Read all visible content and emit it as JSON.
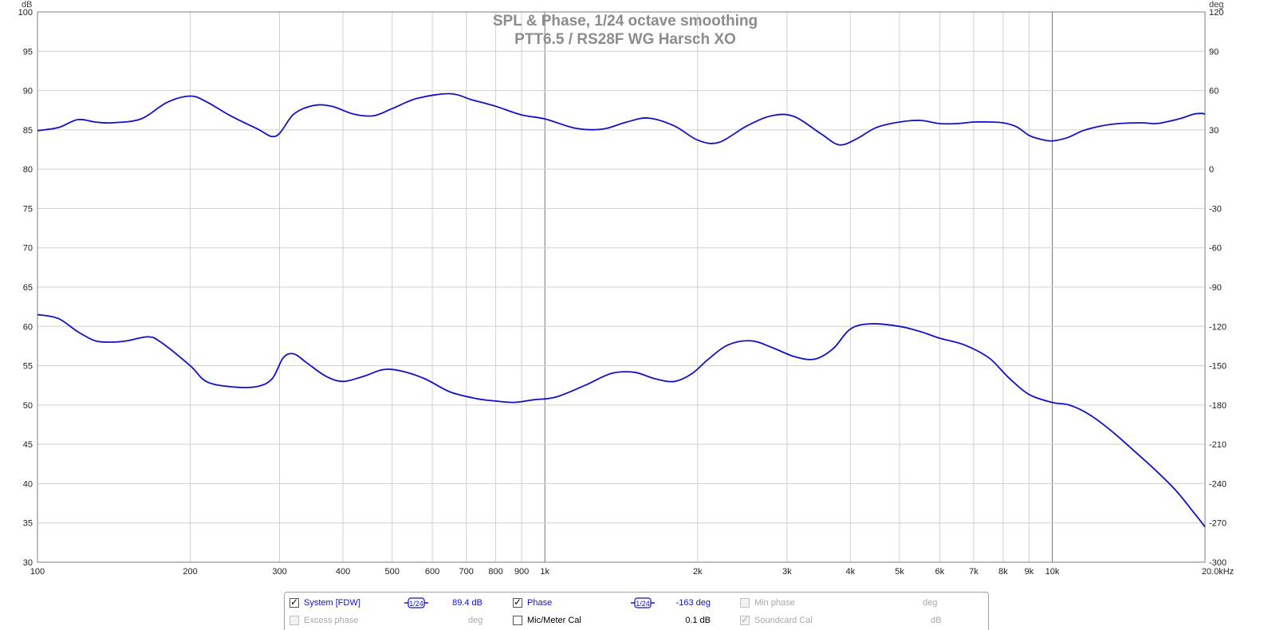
{
  "chart_data": {
    "type": "line",
    "title": "SPL & Phase, 1/24 octave smoothing",
    "subtitle": "PTT6.5 / RS28F WG Harsch XO",
    "y_left_label": "dB",
    "y_right_label": "deg",
    "x_unit": "Hz",
    "x_scale": "log",
    "xlim": [
      100,
      20000
    ],
    "ylim_left": [
      30,
      100
    ],
    "ylim_right": [
      -300,
      120
    ],
    "grid": true,
    "x_ticks": [
      {
        "v": 100,
        "label": "100"
      },
      {
        "v": 200,
        "label": "200"
      },
      {
        "v": 300,
        "label": "300"
      },
      {
        "v": 400,
        "label": "400"
      },
      {
        "v": 500,
        "label": "500"
      },
      {
        "v": 600,
        "label": "600"
      },
      {
        "v": 700,
        "label": "700"
      },
      {
        "v": 800,
        "label": "800"
      },
      {
        "v": 900,
        "label": "900"
      },
      {
        "v": 1000,
        "label": "1k"
      },
      {
        "v": 2000,
        "label": "2k"
      },
      {
        "v": 3000,
        "label": "3k"
      },
      {
        "v": 4000,
        "label": "4k"
      },
      {
        "v": 5000,
        "label": "5k"
      },
      {
        "v": 6000,
        "label": "6k"
      },
      {
        "v": 7000,
        "label": "7k"
      },
      {
        "v": 8000,
        "label": "8k"
      },
      {
        "v": 9000,
        "label": "9k"
      },
      {
        "v": 10000,
        "label": "10k"
      },
      {
        "v": 20000,
        "label": "20.0kHz"
      }
    ],
    "y_left_ticks": [
      30,
      35,
      40,
      45,
      50,
      55,
      60,
      65,
      70,
      75,
      80,
      85,
      90,
      95,
      100
    ],
    "y_right_ticks": [
      -300,
      -270,
      -240,
      -210,
      -180,
      -150,
      -120,
      -90,
      -60,
      -30,
      0,
      30,
      60,
      90,
      120
    ],
    "series": [
      {
        "name": "System [FDW]",
        "axis": "left",
        "color": "#1010c8",
        "points": [
          [
            100,
            84.9
          ],
          [
            110,
            85.3
          ],
          [
            120,
            86.3
          ],
          [
            130,
            86.0
          ],
          [
            140,
            85.9
          ],
          [
            160,
            86.4
          ],
          [
            180,
            88.5
          ],
          [
            200,
            89.3
          ],
          [
            215,
            88.6
          ],
          [
            240,
            86.8
          ],
          [
            270,
            85.2
          ],
          [
            295,
            84.2
          ],
          [
            320,
            87.0
          ],
          [
            350,
            88.1
          ],
          [
            380,
            88.0
          ],
          [
            420,
            87.0
          ],
          [
            460,
            86.8
          ],
          [
            500,
            87.7
          ],
          [
            560,
            89.0
          ],
          [
            650,
            89.6
          ],
          [
            720,
            88.8
          ],
          [
            800,
            88.0
          ],
          [
            900,
            86.9
          ],
          [
            1000,
            86.4
          ],
          [
            1150,
            85.2
          ],
          [
            1300,
            85.1
          ],
          [
            1450,
            86.0
          ],
          [
            1600,
            86.5
          ],
          [
            1800,
            85.5
          ],
          [
            2000,
            83.7
          ],
          [
            2200,
            83.4
          ],
          [
            2500,
            85.5
          ],
          [
            2800,
            86.8
          ],
          [
            3100,
            86.7
          ],
          [
            3500,
            84.5
          ],
          [
            3800,
            83.1
          ],
          [
            4100,
            83.8
          ],
          [
            4500,
            85.3
          ],
          [
            5000,
            86.0
          ],
          [
            5500,
            86.2
          ],
          [
            6000,
            85.8
          ],
          [
            6500,
            85.8
          ],
          [
            7000,
            86.0
          ],
          [
            7500,
            86.0
          ],
          [
            8000,
            85.9
          ],
          [
            8500,
            85.4
          ],
          [
            9000,
            84.3
          ],
          [
            9500,
            83.8
          ],
          [
            10000,
            83.6
          ],
          [
            10700,
            84.0
          ],
          [
            11500,
            84.9
          ],
          [
            12500,
            85.5
          ],
          [
            13500,
            85.8
          ],
          [
            15000,
            85.9
          ],
          [
            16000,
            85.8
          ],
          [
            17000,
            86.1
          ],
          [
            18000,
            86.5
          ],
          [
            19000,
            87.0
          ],
          [
            19700,
            87.1
          ],
          [
            20000,
            87.0
          ]
        ]
      },
      {
        "name": "Phase",
        "axis": "right",
        "color": "#1010c8",
        "points": [
          [
            100,
            -111
          ],
          [
            110,
            -114
          ],
          [
            120,
            -124
          ],
          [
            130,
            -131
          ],
          [
            140,
            -132
          ],
          [
            150,
            -131
          ],
          [
            165,
            -128
          ],
          [
            175,
            -132
          ],
          [
            200,
            -150
          ],
          [
            215,
            -162
          ],
          [
            240,
            -166
          ],
          [
            270,
            -166
          ],
          [
            290,
            -160
          ],
          [
            305,
            -144
          ],
          [
            320,
            -141
          ],
          [
            340,
            -148
          ],
          [
            370,
            -158
          ],
          [
            400,
            -162
          ],
          [
            440,
            -158
          ],
          [
            480,
            -153
          ],
          [
            520,
            -154
          ],
          [
            580,
            -160
          ],
          [
            650,
            -170
          ],
          [
            730,
            -175
          ],
          [
            800,
            -177
          ],
          [
            870,
            -178
          ],
          [
            950,
            -176
          ],
          [
            1050,
            -174
          ],
          [
            1200,
            -165
          ],
          [
            1350,
            -156
          ],
          [
            1500,
            -155
          ],
          [
            1650,
            -160
          ],
          [
            1800,
            -162
          ],
          [
            1950,
            -156
          ],
          [
            2100,
            -145
          ],
          [
            2300,
            -134
          ],
          [
            2550,
            -131
          ],
          [
            2800,
            -136
          ],
          [
            3100,
            -143
          ],
          [
            3400,
            -145
          ],
          [
            3700,
            -137
          ],
          [
            4000,
            -122
          ],
          [
            4400,
            -118
          ],
          [
            5000,
            -120
          ],
          [
            5500,
            -124
          ],
          [
            6000,
            -129
          ],
          [
            6700,
            -134
          ],
          [
            7500,
            -144
          ],
          [
            8200,
            -159
          ],
          [
            9000,
            -172
          ],
          [
            10000,
            -178
          ],
          [
            10800,
            -180
          ],
          [
            11800,
            -187
          ],
          [
            13000,
            -199
          ],
          [
            14500,
            -215
          ],
          [
            16000,
            -230
          ],
          [
            17500,
            -245
          ],
          [
            19000,
            -262
          ],
          [
            20000,
            -273
          ]
        ]
      }
    ]
  },
  "legend": {
    "row1": [
      {
        "label": "System [FDW]",
        "checked": true,
        "enabled": true,
        "smoothing": "1/24",
        "value": "89.4 dB"
      },
      {
        "label": "Phase",
        "checked": true,
        "enabled": true,
        "smoothing": "1/24",
        "value": "-163 deg"
      },
      {
        "label": "Min phase",
        "checked": false,
        "enabled": false,
        "unit": "deg"
      }
    ],
    "row2": [
      {
        "label": "Excess phase",
        "checked": false,
        "enabled": false,
        "unit": "deg"
      },
      {
        "label": "Mic/Meter Cal",
        "checked": false,
        "enabled": true,
        "value": "0.1 dB"
      },
      {
        "label": "Soundcard Cal",
        "checked": true,
        "enabled": false,
        "unit": "dB"
      }
    ]
  }
}
